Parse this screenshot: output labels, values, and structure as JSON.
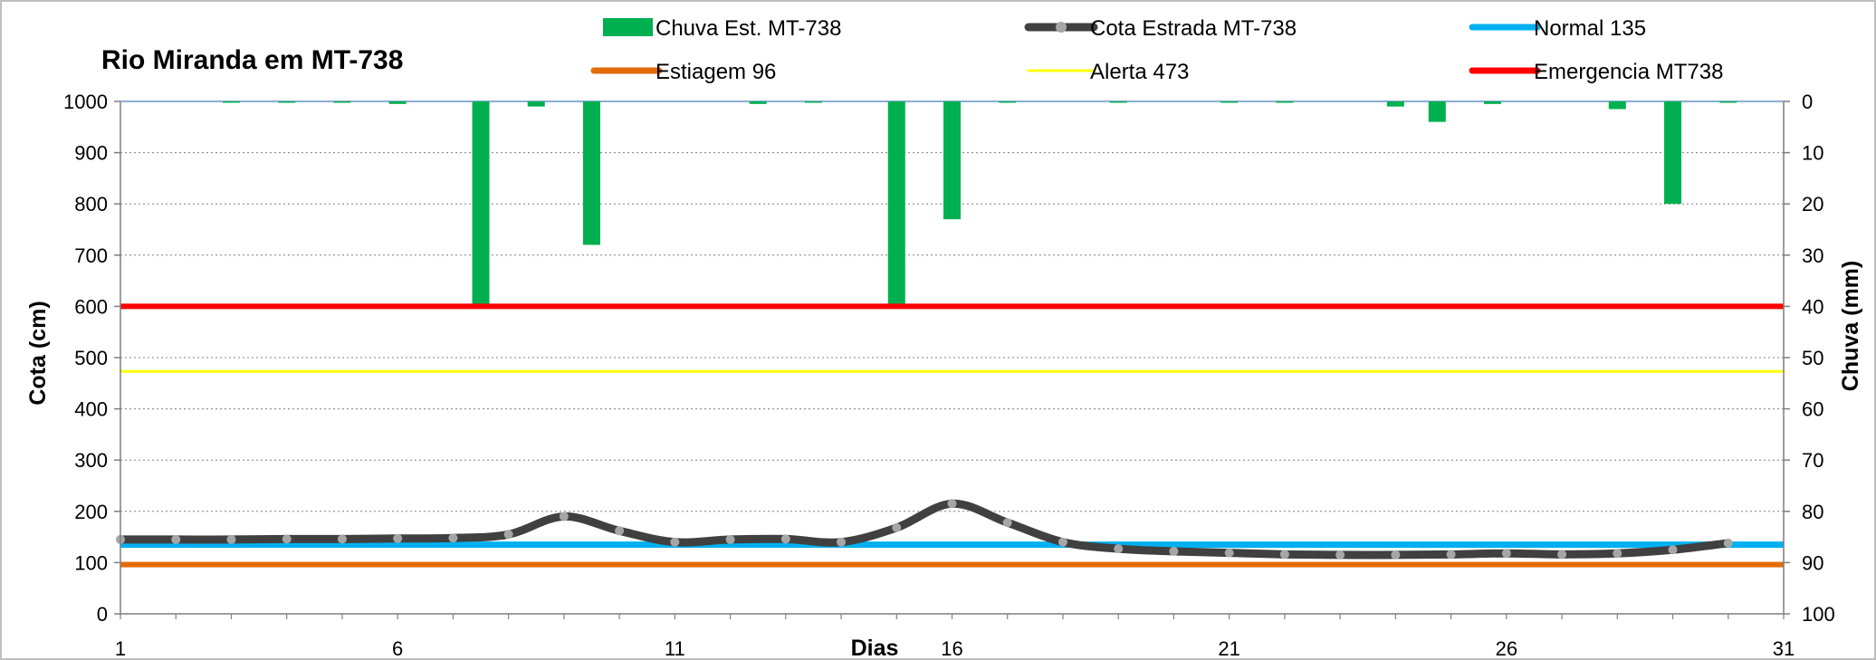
{
  "chart_data": {
    "type": "line",
    "title": "Rio Miranda  em MT-738",
    "xlabel": "Dias",
    "ylabel": "Cota    (cm)",
    "y2label": "Chuva (mm)",
    "xlim": [
      1,
      31
    ],
    "xticks": [
      "1",
      "6",
      "11",
      "16",
      "21",
      "26",
      "31"
    ],
    "ylim": [
      0,
      1000
    ],
    "yticks": [
      "0",
      "100",
      "200",
      "300",
      "400",
      "500",
      "600",
      "700",
      "800",
      "900",
      "1000"
    ],
    "y2lim": [
      100,
      0
    ],
    "y2ticks": [
      "0",
      "10",
      "20",
      "30",
      "40",
      "50",
      "60",
      "70",
      "80",
      "90",
      "100"
    ],
    "grid": "horizontal dotted",
    "legend_position": "top",
    "legend": [
      {
        "key": "chuva",
        "label": "Chuva Est. MT-738",
        "color": "#00B050",
        "kind": "bar"
      },
      {
        "key": "cota",
        "label": "Cota Estrada MT-738",
        "color": "#404040",
        "kind": "line-marker"
      },
      {
        "key": "normal",
        "label": "Normal  135",
        "color": "#00B0F0",
        "kind": "line"
      },
      {
        "key": "estiagem",
        "label": "Estiagem 96",
        "color": "#E36C09",
        "kind": "line"
      },
      {
        "key": "alerta",
        "label": "Alerta 473",
        "color": "#FFFF00",
        "kind": "line"
      },
      {
        "key": "emergencia",
        "label": "Emergencia MT738",
        "color": "#FF0000",
        "kind": "line"
      }
    ],
    "series": [
      {
        "name": "Cota Estrada MT-738",
        "axis": "left",
        "x": [
          1,
          2,
          3,
          4,
          5,
          6,
          7,
          8,
          9,
          10,
          11,
          12,
          13,
          14,
          15,
          16,
          17,
          18,
          19,
          20,
          21,
          22,
          23,
          24,
          25,
          26,
          27,
          28,
          29,
          30
        ],
        "values": [
          145,
          145,
          145,
          146,
          146,
          147,
          148,
          155,
          190,
          162,
          140,
          145,
          146,
          140,
          168,
          215,
          178,
          140,
          127,
          122,
          119,
          116,
          115,
          115,
          116,
          118,
          116,
          118,
          125,
          138
        ],
        "color": "#404040"
      },
      {
        "name": "Chuva Est. MT-738",
        "axis": "right",
        "x": [
          3,
          4,
          5,
          6,
          7.5,
          8.5,
          9.5,
          12.5,
          13.5,
          15,
          16,
          17,
          19,
          21,
          22,
          24,
          24.75,
          25.75,
          28,
          29,
          30
        ],
        "values": [
          0.2,
          0.2,
          0.2,
          0.5,
          40,
          1,
          28,
          0.5,
          0.2,
          40,
          23,
          0.2,
          0.2,
          0.2,
          0.2,
          1,
          4,
          0.5,
          1.5,
          20,
          0.2
        ],
        "color": "#00B050"
      },
      {
        "name": "Normal  135",
        "axis": "left",
        "value": 135,
        "color": "#00B0F0"
      },
      {
        "name": "Estiagem 96",
        "axis": "left",
        "value": 96,
        "color": "#E36C09"
      },
      {
        "name": "Alerta 473",
        "axis": "left",
        "value": 473,
        "color": "#FFFF00"
      },
      {
        "name": "Emergencia MT738",
        "axis": "left",
        "value": 600,
        "color": "#FF0000"
      }
    ]
  }
}
